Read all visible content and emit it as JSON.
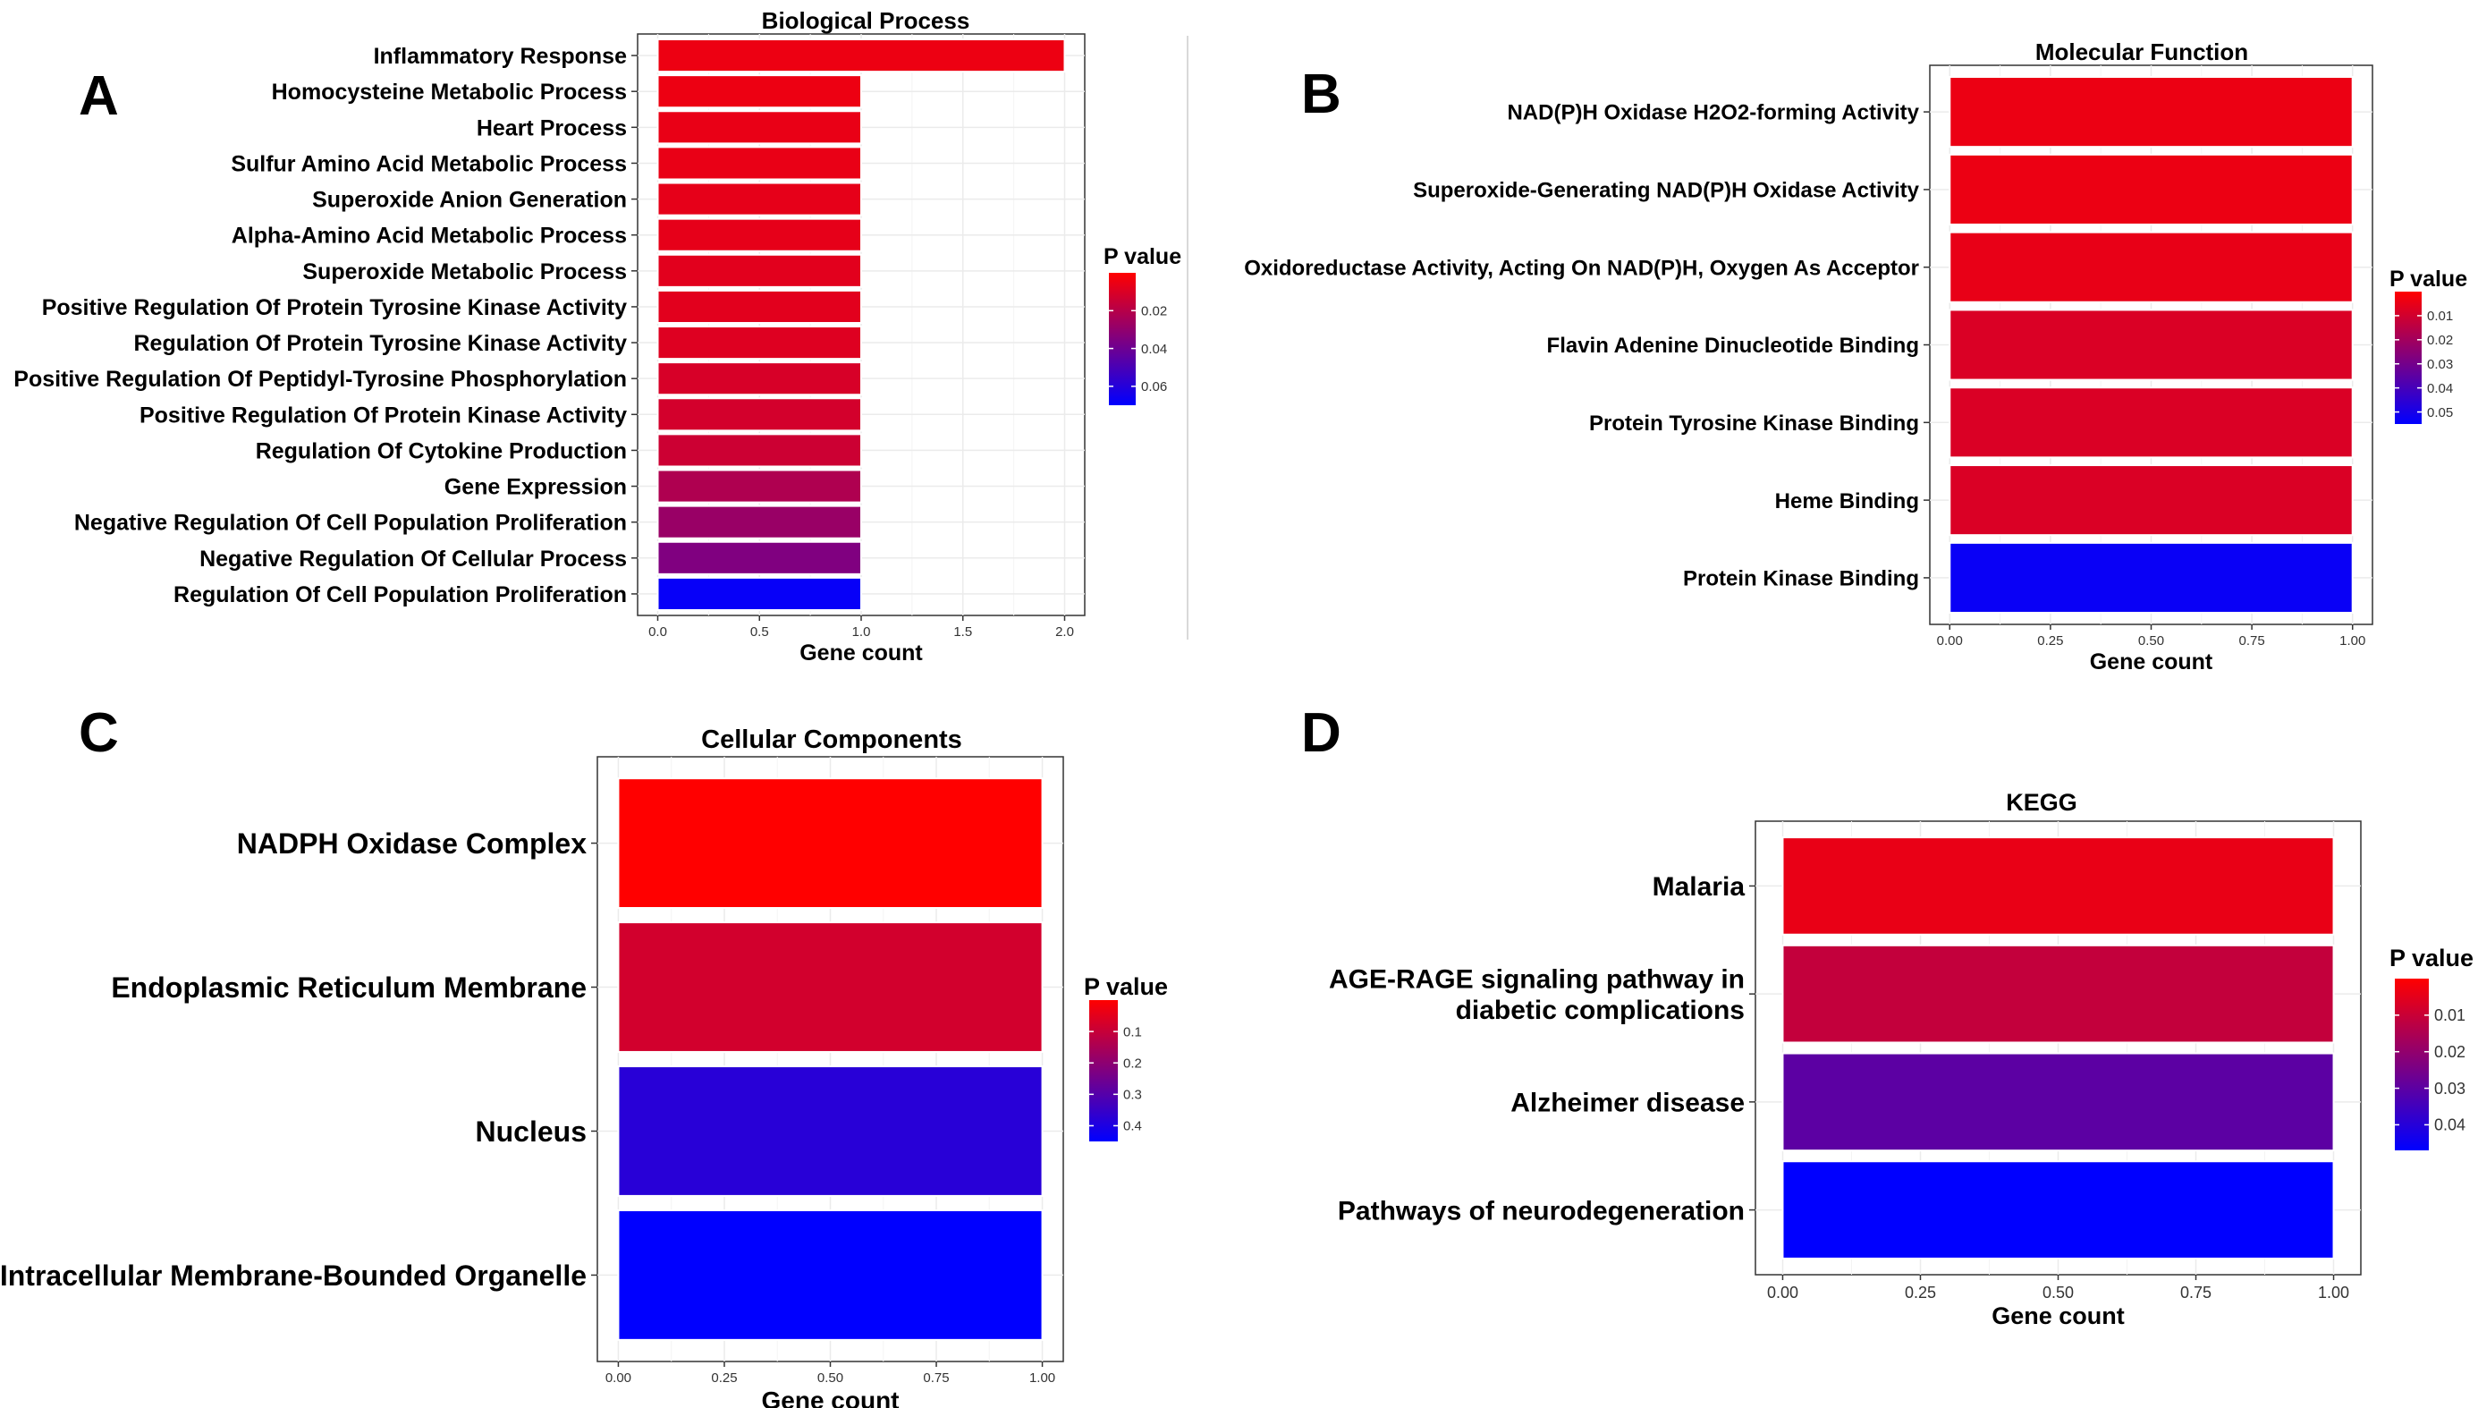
{
  "divider_color": "#d9d9d9",
  "colors": {
    "high": "#ff0000",
    "low": "#0000ff",
    "grid": "#ebebeb",
    "border": "#333333"
  },
  "chart_data": [
    {
      "panel": "A",
      "type": "bar",
      "orientation": "horizontal",
      "title": "Biological Process",
      "xlabel": "Gene count",
      "ylabel": "",
      "xlim": [
        0,
        2.0
      ],
      "xticks": [
        "0.0",
        "0.5",
        "1.0",
        "1.5",
        "2.0"
      ],
      "xtick_values": [
        0,
        0.5,
        1.0,
        1.5,
        2.0
      ],
      "categories": [
        "Inflammatory Response",
        "Homocysteine Metabolic Process",
        "Heart Process",
        "Sulfur Amino Acid Metabolic Process",
        "Superoxide Anion Generation",
        "Alpha-Amino Acid Metabolic Process",
        "Superoxide Metabolic Process",
        "Positive Regulation Of Protein Tyrosine Kinase Activity",
        "Regulation Of Protein Tyrosine Kinase Activity",
        "Positive Regulation Of Peptidyl-Tyrosine Phosphorylation",
        "Positive Regulation Of Protein Kinase Activity",
        "Regulation Of Cytokine Production",
        "Gene Expression",
        "Negative Regulation Of Cell Population Proliferation",
        "Negative Regulation Of Cellular Process",
        "Regulation Of Cell Population Proliferation"
      ],
      "values": [
        2,
        1,
        1,
        1,
        1,
        1,
        1,
        1,
        1,
        1,
        1,
        1,
        1,
        1,
        1,
        1
      ],
      "p_values": [
        0.005,
        0.005,
        0.006,
        0.006,
        0.007,
        0.007,
        0.008,
        0.008,
        0.009,
        0.011,
        0.012,
        0.014,
        0.022,
        0.028,
        0.035,
        0.068
      ],
      "legend": {
        "title": "P value",
        "ticks": [
          "0.02",
          "0.04",
          "0.06"
        ],
        "tick_values": [
          0.02,
          0.04,
          0.06
        ],
        "range": [
          0.0,
          0.07
        ],
        "position": "right"
      }
    },
    {
      "panel": "B",
      "type": "bar",
      "orientation": "horizontal",
      "title": "Molecular Function",
      "xlabel": "Gene count",
      "ylabel": "",
      "xlim": [
        0,
        1.0
      ],
      "xticks": [
        "0.00",
        "0.25",
        "0.50",
        "0.75",
        "1.00"
      ],
      "xtick_values": [
        0,
        0.25,
        0.5,
        0.75,
        1.0
      ],
      "categories": [
        "NAD(P)H Oxidase H2O2-forming Activity",
        "Superoxide-Generating NAD(P)H Oxidase Activity",
        "Oxidoreductase Activity, Acting On NAD(P)H, Oxygen As Acceptor",
        "Flavin Adenine Dinucleotide Binding",
        "Protein Tyrosine Kinase Binding",
        "Heme Binding",
        "Protein Kinase Binding"
      ],
      "values": [
        1,
        1,
        1,
        1,
        1,
        1,
        1
      ],
      "p_values": [
        0.004,
        0.004,
        0.005,
        0.008,
        0.008,
        0.008,
        0.053
      ],
      "legend": {
        "title": "P value",
        "ticks": [
          "0.01",
          "0.02",
          "0.03",
          "0.04",
          "0.05"
        ],
        "tick_values": [
          0.01,
          0.02,
          0.03,
          0.04,
          0.05
        ],
        "range": [
          0.0,
          0.055
        ],
        "position": "right"
      }
    },
    {
      "panel": "C",
      "type": "bar",
      "orientation": "horizontal",
      "title": "Cellular Components",
      "xlabel": "Gene count",
      "ylabel": "",
      "xlim": [
        0,
        1.0
      ],
      "xticks": [
        "0.00",
        "0.25",
        "0.50",
        "0.75",
        "1.00"
      ],
      "xtick_values": [
        0,
        0.25,
        0.5,
        0.75,
        1.0
      ],
      "categories": [
        "NADPH Oxidase Complex",
        "Endoplasmic Reticulum Membrane",
        "Nucleus",
        "Intracellular Membrane-Bounded Organelle"
      ],
      "values": [
        1,
        1,
        1,
        1
      ],
      "p_values": [
        0.0,
        0.08,
        0.38,
        0.47
      ],
      "legend": {
        "title": "P value",
        "ticks": [
          "0.1",
          "0.2",
          "0.3",
          "0.4"
        ],
        "tick_values": [
          0.1,
          0.2,
          0.3,
          0.4
        ],
        "range": [
          0.0,
          0.45
        ],
        "position": "right"
      }
    },
    {
      "panel": "D",
      "type": "bar",
      "orientation": "horizontal",
      "title": "KEGG",
      "xlabel": "Gene count",
      "ylabel": "",
      "xlim": [
        0,
        1.0
      ],
      "xticks": [
        "0.00",
        "0.25",
        "0.50",
        "0.75",
        "1.00"
      ],
      "xtick_values": [
        0,
        0.25,
        0.5,
        0.75,
        1.0
      ],
      "categories": [
        "Malaria",
        "AGE-RAGE signaling pathway in diabetic complications",
        "Alzheimer disease",
        "Pathways of neurodegeneration"
      ],
      "values": [
        1,
        1,
        1,
        1
      ],
      "p_values": [
        0.004,
        0.011,
        0.03,
        0.047
      ],
      "legend": {
        "title": "P value",
        "ticks": [
          "0.01",
          "0.02",
          "0.03",
          "0.04"
        ],
        "tick_values": [
          0.01,
          0.02,
          0.03,
          0.04
        ],
        "range": [
          0.0,
          0.047
        ],
        "position": "right"
      }
    }
  ]
}
